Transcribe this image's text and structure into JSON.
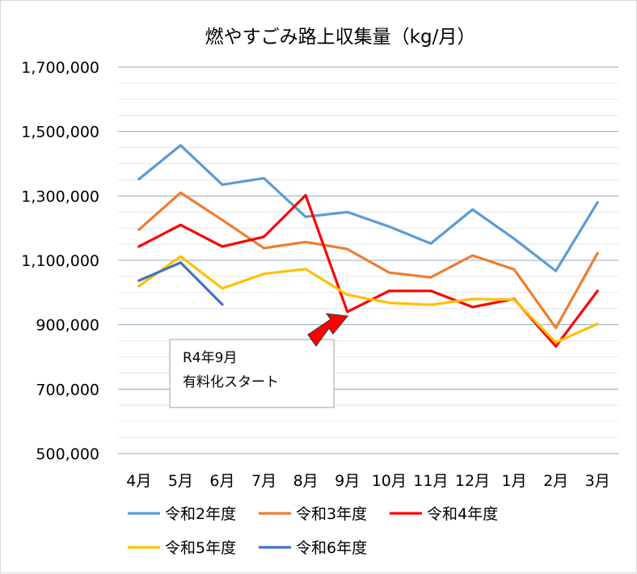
{
  "chart_data": {
    "type": "line",
    "title": "燃やすごみ路上収集量（kg/月）",
    "xlabel": "",
    "ylabel": "",
    "categories": [
      "4月",
      "5月",
      "6月",
      "7月",
      "8月",
      "9月",
      "10月",
      "11月",
      "12月",
      "1月",
      "2月",
      "3月"
    ],
    "ylim": [
      500000,
      1700000
    ],
    "yticks": [
      500000,
      700000,
      900000,
      1100000,
      1300000,
      1500000,
      1700000
    ],
    "ytick_labels": [
      "500,000",
      "700,000",
      "900,000",
      "1,100,000",
      "1,300,000",
      "1,500,000",
      "1,700,000"
    ],
    "grid": true,
    "legend_position": "bottom",
    "series": [
      {
        "name": "令和2年度",
        "color": "#5B9BD5",
        "values": [
          1352000,
          1457000,
          1335000,
          1355000,
          1235000,
          1250000,
          1205000,
          1152000,
          1258000,
          1167000,
          1067000,
          1280000
        ]
      },
      {
        "name": "令和3年度",
        "color": "#ED7D31",
        "values": [
          1195000,
          1310000,
          1225000,
          1138000,
          1157000,
          1135000,
          1062000,
          1047000,
          1115000,
          1072000,
          890000,
          1122000
        ]
      },
      {
        "name": "令和4年度",
        "color": "#FF0000",
        "values": [
          1143000,
          1210000,
          1143000,
          1173000,
          1302000,
          940000,
          1005000,
          1005000,
          955000,
          980000,
          833000,
          1005000
        ]
      },
      {
        "name": "令和5年度",
        "color": "#FFC000",
        "values": [
          1020000,
          1112000,
          1013000,
          1058000,
          1073000,
          993000,
          968000,
          962000,
          980000,
          978000,
          845000,
          903000
        ]
      },
      {
        "name": "令和6年度",
        "color": "#4472C4",
        "values": [
          1037000,
          1093000,
          963000,
          null,
          null,
          null,
          null,
          null,
          null,
          null,
          null,
          null
        ]
      }
    ],
    "annotations": [
      {
        "lines": [
          "R4年9月",
          "有料化スタート"
        ],
        "points_to": "9月",
        "arrow_color": "#FF0000"
      }
    ]
  }
}
